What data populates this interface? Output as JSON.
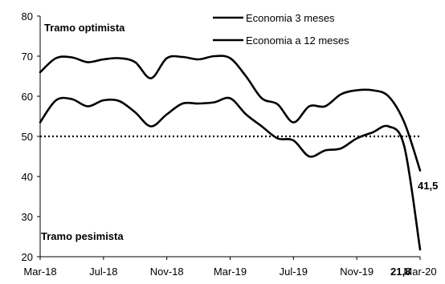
{
  "chart_data": {
    "type": "line",
    "x": [
      "Mar-18",
      "Apr-18",
      "May-18",
      "Jun-18",
      "Jul-18",
      "Aug-18",
      "Sep-18",
      "Oct-18",
      "Nov-18",
      "Dec-18",
      "Jan-19",
      "Feb-19",
      "Mar-19",
      "Apr-19",
      "May-19",
      "Jun-19",
      "Jul-19",
      "Aug-19",
      "Sep-19",
      "Oct-19",
      "Nov-19",
      "Dec-19",
      "Jan-20",
      "Feb-20",
      "Mar-20"
    ],
    "x_tick_labels": [
      "Mar-18",
      "Jul-18",
      "Nov-18",
      "Mar-19",
      "Jul-19",
      "Nov-19",
      "Mar-20"
    ],
    "y_ticks": [
      "20",
      "30",
      "40",
      "50",
      "60",
      "70",
      "80"
    ],
    "ylim": [
      20,
      80
    ],
    "reference_line": 50,
    "zones": {
      "optimist": "Tramo optimista",
      "pessimist": "Tramo pesimista"
    },
    "legend_position": "top-center",
    "series": [
      {
        "name": "Economia 3 meses",
        "values": [
          53.5,
          59.0,
          59.3,
          57.5,
          59.0,
          58.8,
          56.0,
          52.5,
          55.5,
          58.2,
          58.2,
          58.5,
          59.5,
          55.5,
          52.5,
          49.5,
          49.0,
          45.0,
          46.5,
          47.0,
          49.5,
          51.0,
          52.5,
          47.5,
          21.8
        ],
        "end_label": "21,8"
      },
      {
        "name": "Economia a 12 meses",
        "values": [
          66.0,
          69.5,
          69.7,
          68.5,
          69.2,
          69.5,
          68.5,
          64.5,
          69.5,
          69.8,
          69.2,
          70.0,
          69.5,
          65.0,
          59.5,
          58.0,
          53.5,
          57.5,
          57.5,
          60.5,
          61.5,
          61.5,
          60.0,
          53.5,
          41.5
        ],
        "end_label": "41,5"
      }
    ]
  }
}
